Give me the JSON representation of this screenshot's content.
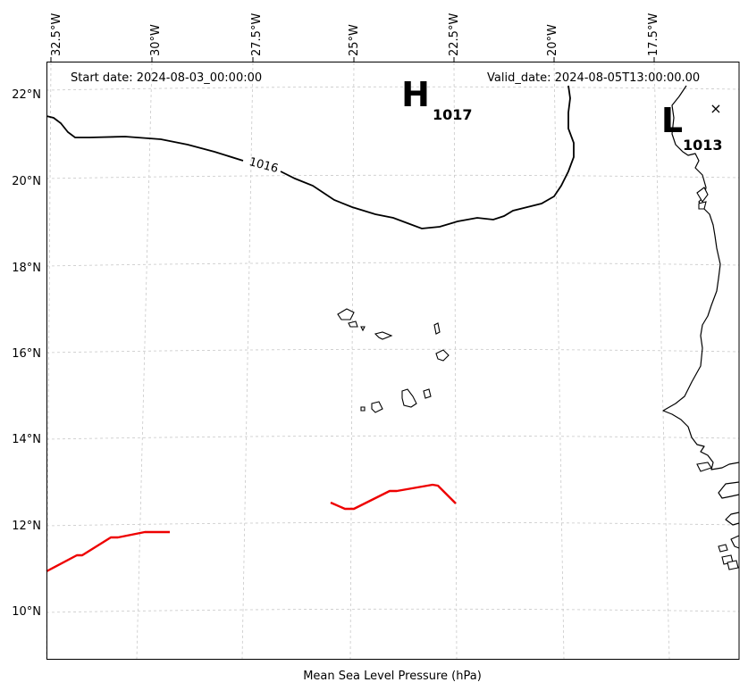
{
  "header": {
    "start_date": "Start date: 2024-08-03_00:00:00",
    "valid_date": "Valid_date: 2024-08-05T13:00:00.00"
  },
  "footer": {
    "xlabel": "Mean Sea Level Pressure (hPa)"
  },
  "axes": {
    "lon_labels": [
      "32.5°W",
      "30°W",
      "27.5°W",
      "25°W",
      "22.5°W",
      "20°W",
      "17.5°W"
    ],
    "lat_labels": [
      "22°N",
      "20°N",
      "18°N",
      "16°N",
      "14°N",
      "12°N",
      "10°N"
    ]
  },
  "pressure_centers": [
    {
      "type": "H",
      "glyph": "H",
      "value": "1017",
      "lon": -23.5,
      "lat": 22.1
    },
    {
      "type": "L",
      "glyph": "L",
      "value": "1013",
      "lon": -17.0,
      "lat": 21.3
    }
  ],
  "isobars": [
    {
      "value": 1016,
      "label": "1016"
    }
  ],
  "marker": {
    "symbol": "×"
  },
  "colors": {
    "isobar": "#000000",
    "front": "#ee0000",
    "grid": "#c8c8c8",
    "land": "#ffffff"
  }
}
